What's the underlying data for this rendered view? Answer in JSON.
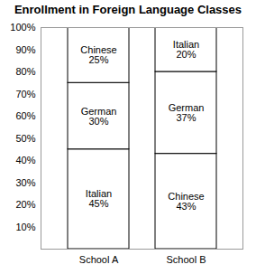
{
  "chart_data": {
    "type": "bar",
    "title": "Enrollment in Foreign Language Classes",
    "categories": [
      "School A",
      "School B"
    ],
    "stacks": [
      {
        "category": "School A",
        "names": [
          "Italian",
          "German",
          "Chinese"
        ],
        "values": [
          45,
          30,
          25
        ],
        "value_labels": [
          "45%",
          "30%",
          "25%"
        ]
      },
      {
        "category": "School B",
        "names": [
          "Chinese",
          "German",
          "Italian"
        ],
        "values": [
          43,
          37,
          20
        ],
        "value_labels": [
          "43%",
          "37%",
          "20%"
        ]
      }
    ],
    "color": "#ffffff",
    "stacked": true,
    "data_labels": true,
    "grid": false,
    "ylim": [
      0,
      100
    ],
    "yticks": [
      {
        "value": 10,
        "label": "10%"
      },
      {
        "value": 20,
        "label": "20%"
      },
      {
        "value": 30,
        "label": "30%"
      },
      {
        "value": 40,
        "label": "40%"
      },
      {
        "value": 50,
        "label": "50%"
      },
      {
        "value": 60,
        "label": "60%"
      },
      {
        "value": 70,
        "label": "70%"
      },
      {
        "value": 80,
        "label": "80%"
      },
      {
        "value": 90,
        "label": "90%"
      },
      {
        "value": 100,
        "label": "100%"
      }
    ]
  }
}
